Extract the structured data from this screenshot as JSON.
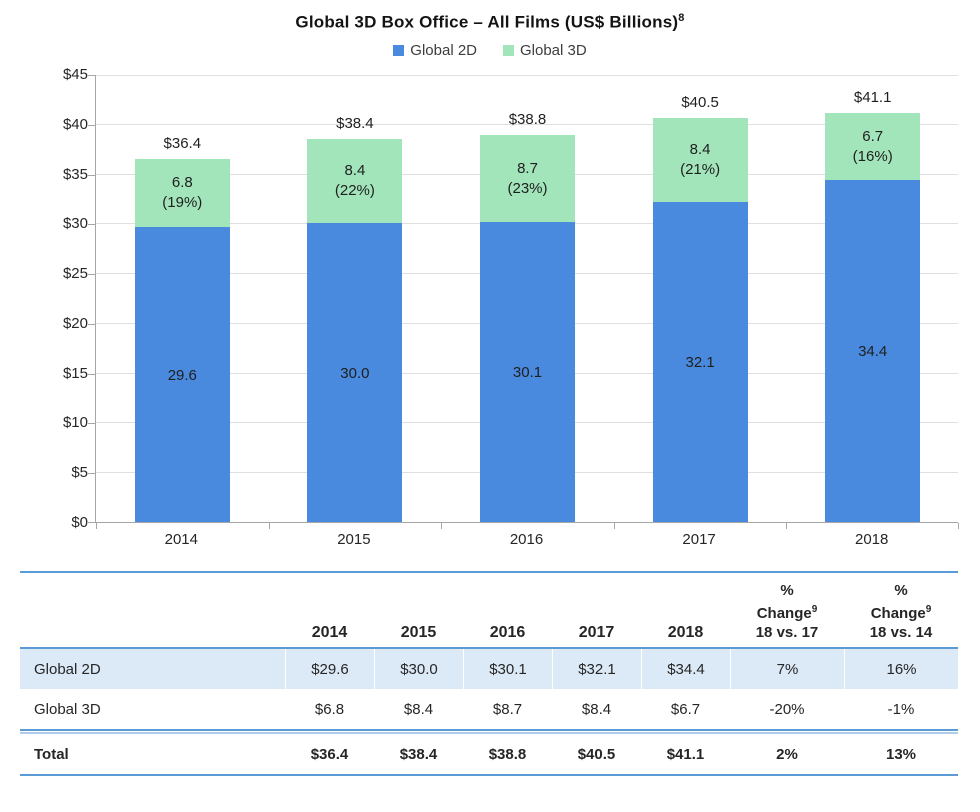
{
  "title": {
    "text": "Global 3D Box Office – All Films (US$ Billions)",
    "superscript": "8"
  },
  "legend": [
    {
      "label": "Global 2D",
      "color": "#4a8ade"
    },
    {
      "label": "Global 3D",
      "color": "#a2e5bb"
    }
  ],
  "colors": {
    "bar_blue": "#4a8ade",
    "bar_green": "#a2e5bb",
    "table_rule_blue": "#5b9bd5",
    "table_rule_light_blue": "#aecdea",
    "highlight_row": "#dce9f7",
    "gridline": "#dfdfdf",
    "axis": "#a6a6a6",
    "text": "#262626"
  },
  "chart_data": {
    "type": "bar",
    "stacked": true,
    "title": "Global 3D Box Office – All Films (US$ Billions)",
    "categories": [
      "2014",
      "2015",
      "2016",
      "2017",
      "2018"
    ],
    "series": [
      {
        "name": "Global 2D",
        "color": "#4a8ade",
        "values": [
          29.6,
          30.0,
          30.1,
          32.1,
          34.4
        ],
        "labels": [
          "29.6",
          "30.0",
          "30.1",
          "32.1",
          "34.4"
        ]
      },
      {
        "name": "Global 3D",
        "color": "#a2e5bb",
        "values": [
          6.8,
          8.4,
          8.7,
          8.4,
          6.7
        ],
        "labels": [
          "6.8",
          "8.4",
          "8.7",
          "8.4",
          "6.7"
        ],
        "share_labels": [
          "(19%)",
          "(22%)",
          "(23%)",
          "(21%)",
          "(16%)"
        ]
      }
    ],
    "totals": [
      36.4,
      38.4,
      38.8,
      40.5,
      41.1
    ],
    "total_labels": [
      "$36.4",
      "$38.4",
      "$38.8",
      "$40.5",
      "$41.1"
    ],
    "xlabel": "",
    "ylabel": "",
    "ylim": [
      0,
      45
    ],
    "ytick_step": 5,
    "ytick_prefix": "$",
    "grid": true,
    "legend_position": "top"
  },
  "table": {
    "year_headers": [
      "2014",
      "2015",
      "2016",
      "2017",
      "2018"
    ],
    "pct_headers": [
      {
        "line1": "%",
        "line2": "Change",
        "superscript": "9",
        "line3": "18 vs. 17"
      },
      {
        "line1": "%",
        "line2": "Change",
        "superscript": "9",
        "line3": "18 vs. 14"
      }
    ],
    "rows": [
      {
        "label": "Global 2D",
        "values": [
          "$29.6",
          "$30.0",
          "$30.1",
          "$32.1",
          "$34.4",
          "7%",
          "16%"
        ],
        "highlight": true,
        "bold": false
      },
      {
        "label": "Global 3D",
        "values": [
          "$6.8",
          "$8.4",
          "$8.7",
          "$8.4",
          "$6.7",
          "-20%",
          "-1%"
        ],
        "highlight": false,
        "bold": false
      },
      {
        "label": "Total",
        "values": [
          "$36.4",
          "$38.4",
          "$38.8",
          "$40.5",
          "$41.1",
          "2%",
          "13%"
        ],
        "highlight": false,
        "bold": true
      }
    ]
  }
}
